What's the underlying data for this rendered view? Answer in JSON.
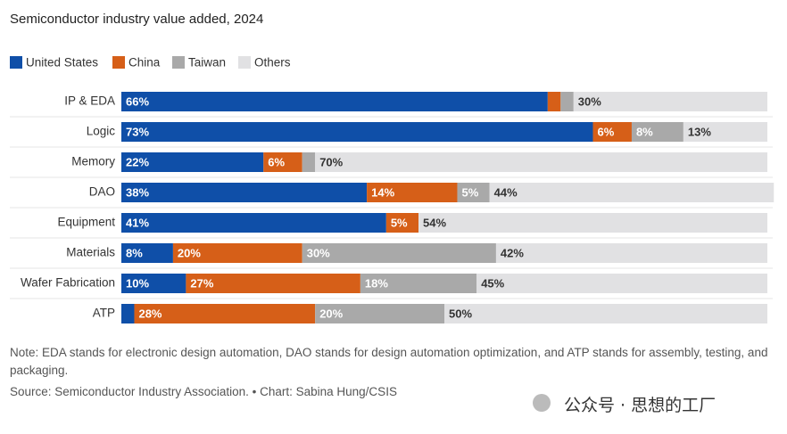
{
  "chart_data": {
    "type": "stacked-bar-horizontal",
    "title": "Semiconductor industry value added, 2024",
    "categories": [
      "IP & EDA",
      "Logic",
      "Memory",
      "DAO",
      "Equipment",
      "Materials",
      "Wafer Fabrication",
      "ATP"
    ],
    "series": [
      {
        "name": "United States",
        "color": "#0f4fa8",
        "label_color": "#ffffff",
        "values": [
          66,
          73,
          22,
          38,
          41,
          8,
          10,
          2
        ],
        "value_labels": [
          "66%",
          "73%",
          "22%",
          "38%",
          "41%",
          "8%",
          "10%",
          null
        ]
      },
      {
        "name": "China",
        "color": "#d65f18",
        "label_color": "#ffffff",
        "values": [
          2,
          6,
          6,
          14,
          5,
          20,
          27,
          28
        ],
        "value_labels": [
          null,
          "6%",
          "6%",
          "14%",
          "5%",
          "20%",
          "27%",
          "28%"
        ]
      },
      {
        "name": "Taiwan",
        "color": "#a9a9a9",
        "label_color": "#ffffff",
        "values": [
          2,
          8,
          2,
          5,
          0,
          30,
          18,
          20
        ],
        "value_labels": [
          null,
          "8%",
          null,
          "5%",
          null,
          "30%",
          "18%",
          "20%"
        ]
      },
      {
        "name": "Others",
        "color": "#e1e1e3",
        "label_color": "#333333",
        "values": [
          30,
          13,
          70,
          44,
          54,
          42,
          45,
          50
        ],
        "value_labels": [
          "30%",
          "13%",
          "70%",
          "44%",
          "54%",
          "42%",
          "45%",
          "50%"
        ]
      }
    ],
    "xlim": [
      0,
      100
    ],
    "note": "Note: EDA stands for electronic design automation, DAO stands for design automation optimization, and ATP stands for assembly, testing, and packaging.",
    "source": "Source: Semiconductor Industry Association. • Chart: Sabina Hung/CSIS",
    "watermark": "公众号 · 思想的工厂"
  }
}
